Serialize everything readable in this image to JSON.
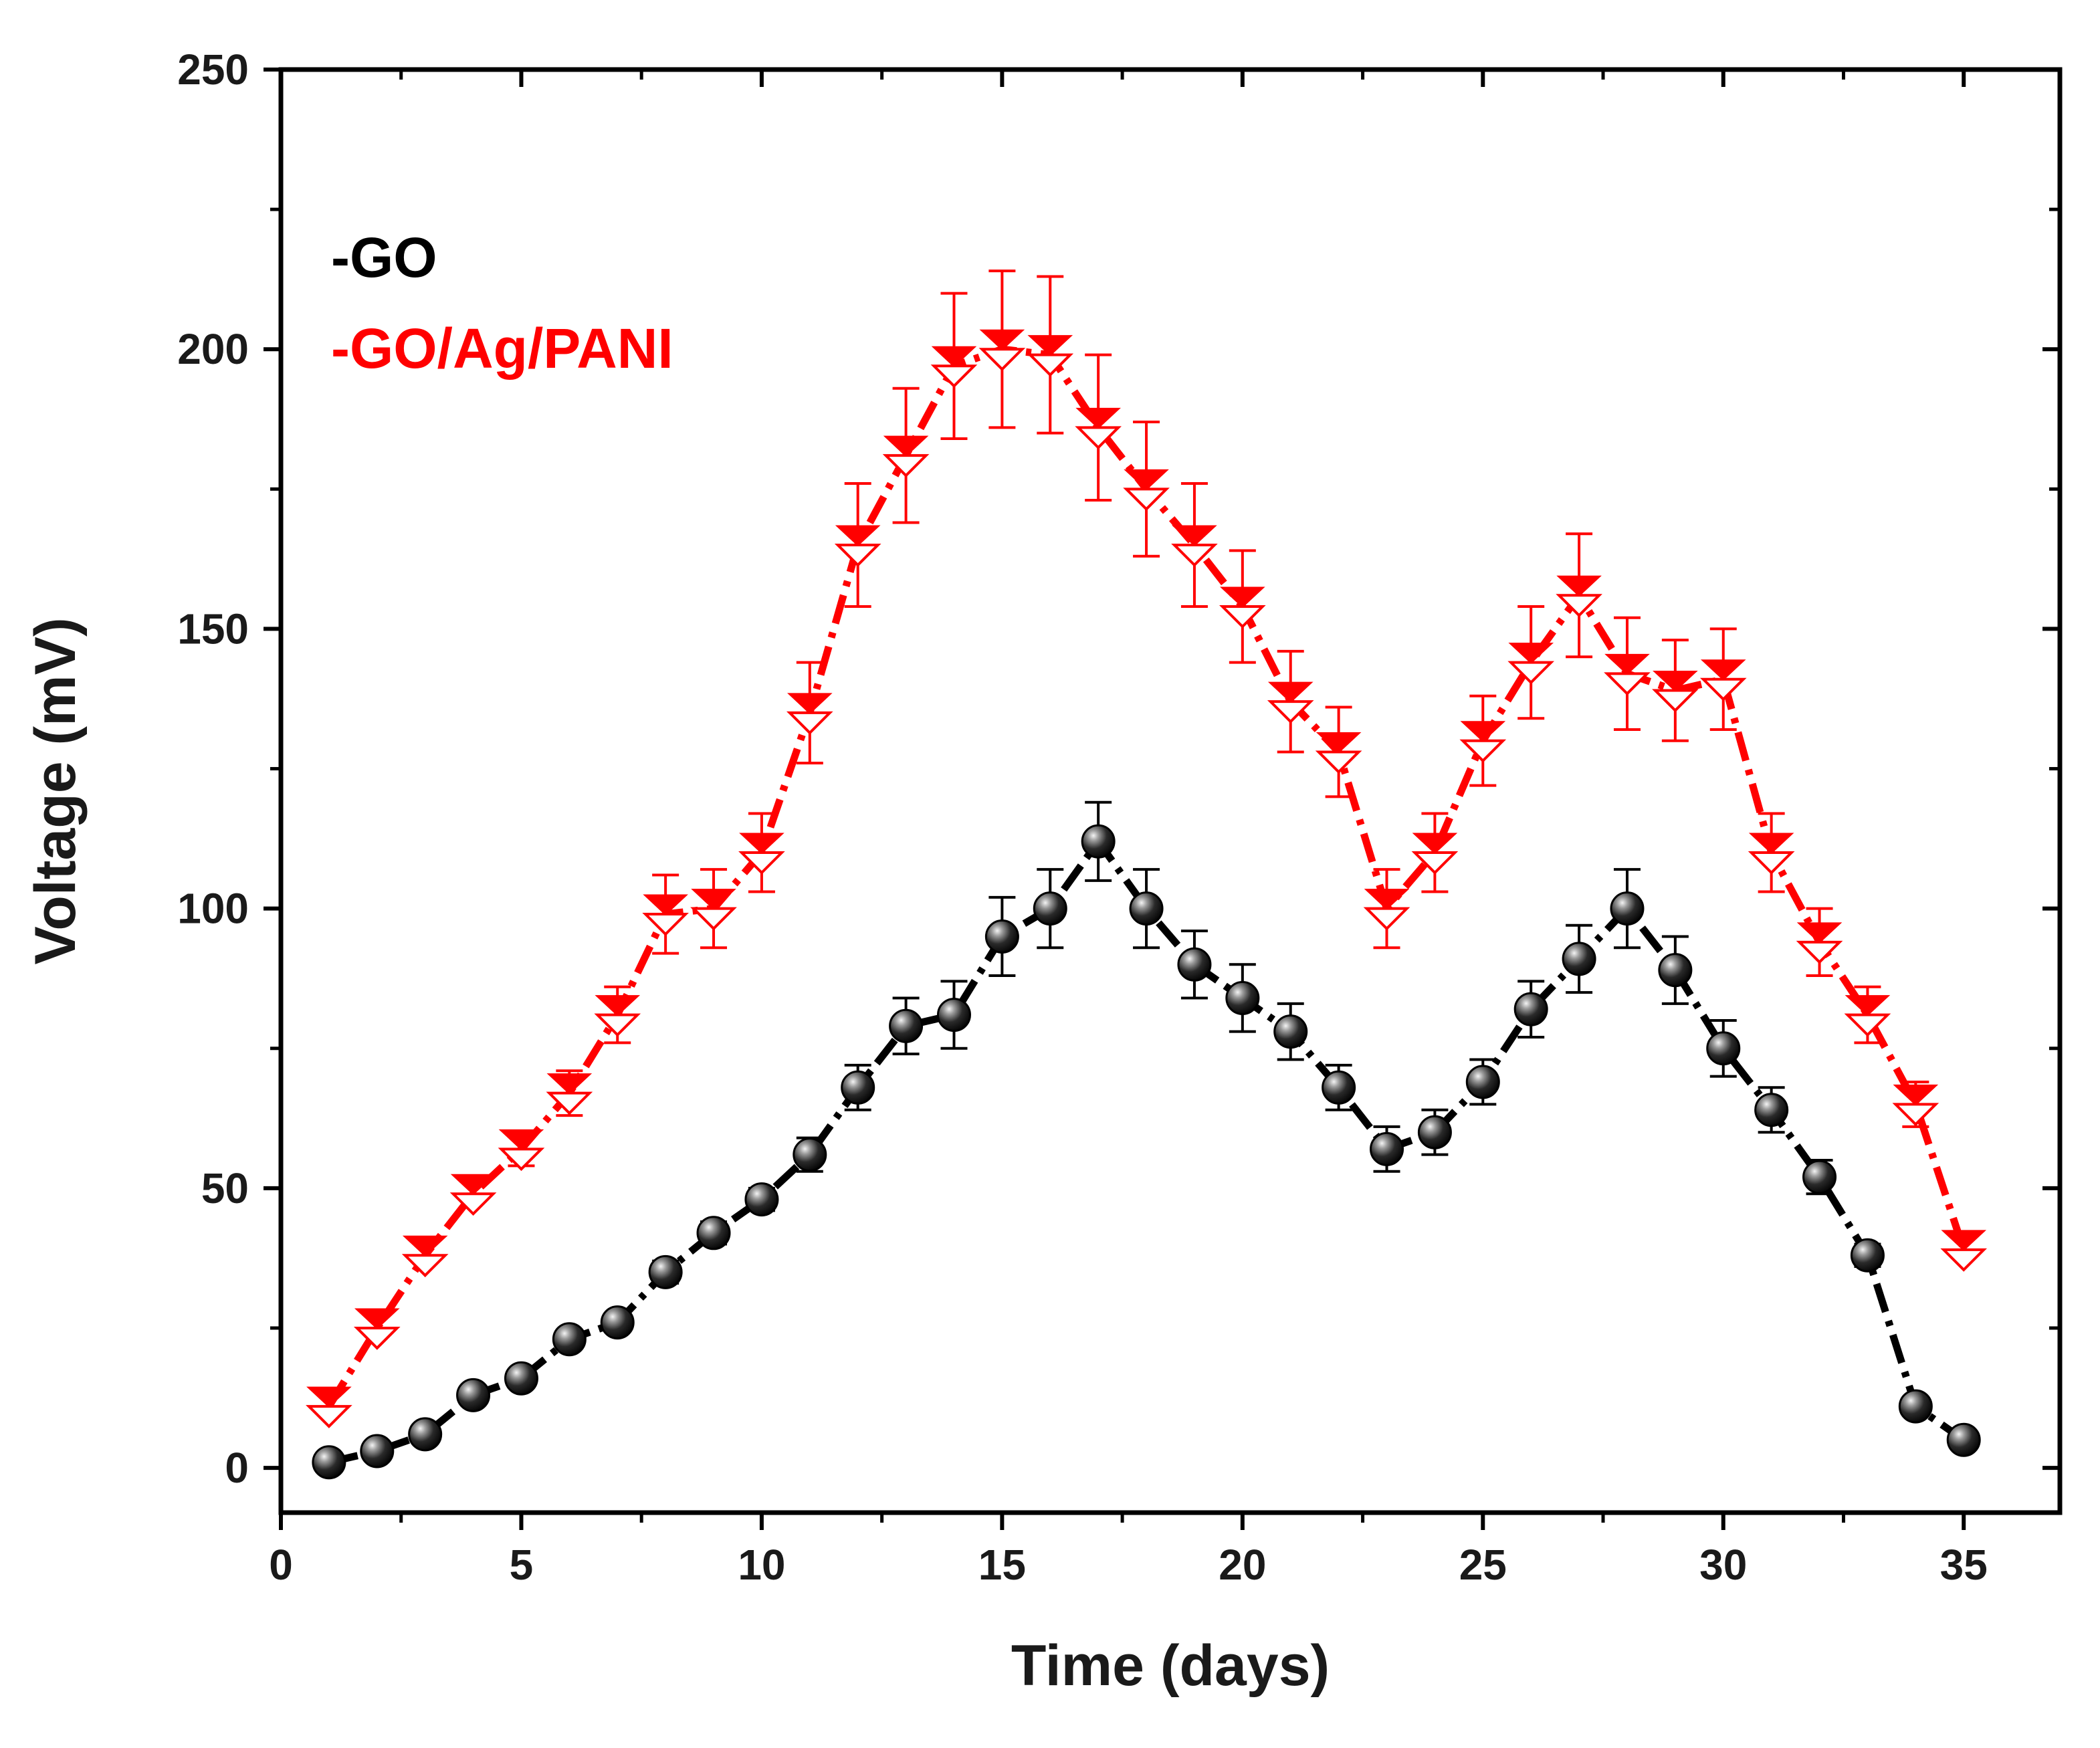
{
  "chart_data": {
    "type": "line",
    "title": "",
    "xlabel": "Time (days)",
    "ylabel": "Voltage (mV)",
    "xlim": [
      0,
      37
    ],
    "ylim": [
      -8,
      250
    ],
    "xticks": [
      0,
      5,
      10,
      15,
      20,
      25,
      30,
      35
    ],
    "yticks": [
      0,
      50,
      100,
      150,
      200,
      250
    ],
    "xtick_labels": [
      "0",
      "5",
      "10",
      "15",
      "20",
      "25",
      "30",
      "35"
    ],
    "ytick_labels": [
      "0",
      "50",
      "100",
      "150",
      "200",
      "250"
    ],
    "grid": false,
    "legend_position": "top-left",
    "series": [
      {
        "name": "-GO",
        "color": "#000000",
        "marker": "sphere",
        "x": [
          1,
          2,
          3,
          4,
          5,
          6,
          7,
          8,
          9,
          10,
          11,
          12,
          13,
          14,
          15,
          16,
          17,
          18,
          19,
          20,
          21,
          22,
          23,
          24,
          25,
          26,
          27,
          28,
          29,
          30,
          31,
          32,
          33,
          34,
          35
        ],
        "y": [
          1,
          3,
          6,
          13,
          16,
          23,
          26,
          35,
          42,
          48,
          56,
          68,
          79,
          81,
          95,
          100,
          112,
          100,
          90,
          84,
          78,
          68,
          57,
          60,
          69,
          82,
          91,
          100,
          89,
          75,
          64,
          52,
          38,
          11,
          5
        ],
        "error": [
          0,
          0,
          0,
          0,
          0,
          0,
          0,
          2,
          2,
          2,
          3,
          4,
          5,
          6,
          7,
          7,
          7,
          7,
          6,
          6,
          5,
          4,
          4,
          4,
          4,
          5,
          6,
          7,
          6,
          5,
          4,
          3,
          2,
          0,
          0
        ]
      },
      {
        "name": "-GO/Ag/PANI",
        "color": "#ff0000",
        "marker": "hourglass-triangles",
        "x": [
          1,
          2,
          3,
          4,
          5,
          6,
          7,
          8,
          9,
          10,
          11,
          12,
          13,
          14,
          15,
          16,
          17,
          18,
          19,
          20,
          21,
          22,
          23,
          24,
          25,
          26,
          27,
          28,
          29,
          30,
          31,
          32,
          33,
          34,
          35
        ],
        "y": [
          11,
          25,
          38,
          49,
          57,
          67,
          81,
          99,
          100,
          110,
          135,
          165,
          181,
          197,
          200,
          199,
          186,
          175,
          165,
          154,
          137,
          128,
          100,
          110,
          130,
          144,
          156,
          142,
          139,
          141,
          110,
          94,
          81,
          65,
          39
        ],
        "error": [
          0,
          0,
          0,
          0,
          3,
          4,
          5,
          7,
          7,
          7,
          9,
          11,
          12,
          13,
          14,
          14,
          13,
          12,
          11,
          10,
          9,
          8,
          7,
          7,
          8,
          10,
          11,
          10,
          9,
          9,
          7,
          6,
          5,
          4,
          0
        ]
      }
    ]
  }
}
